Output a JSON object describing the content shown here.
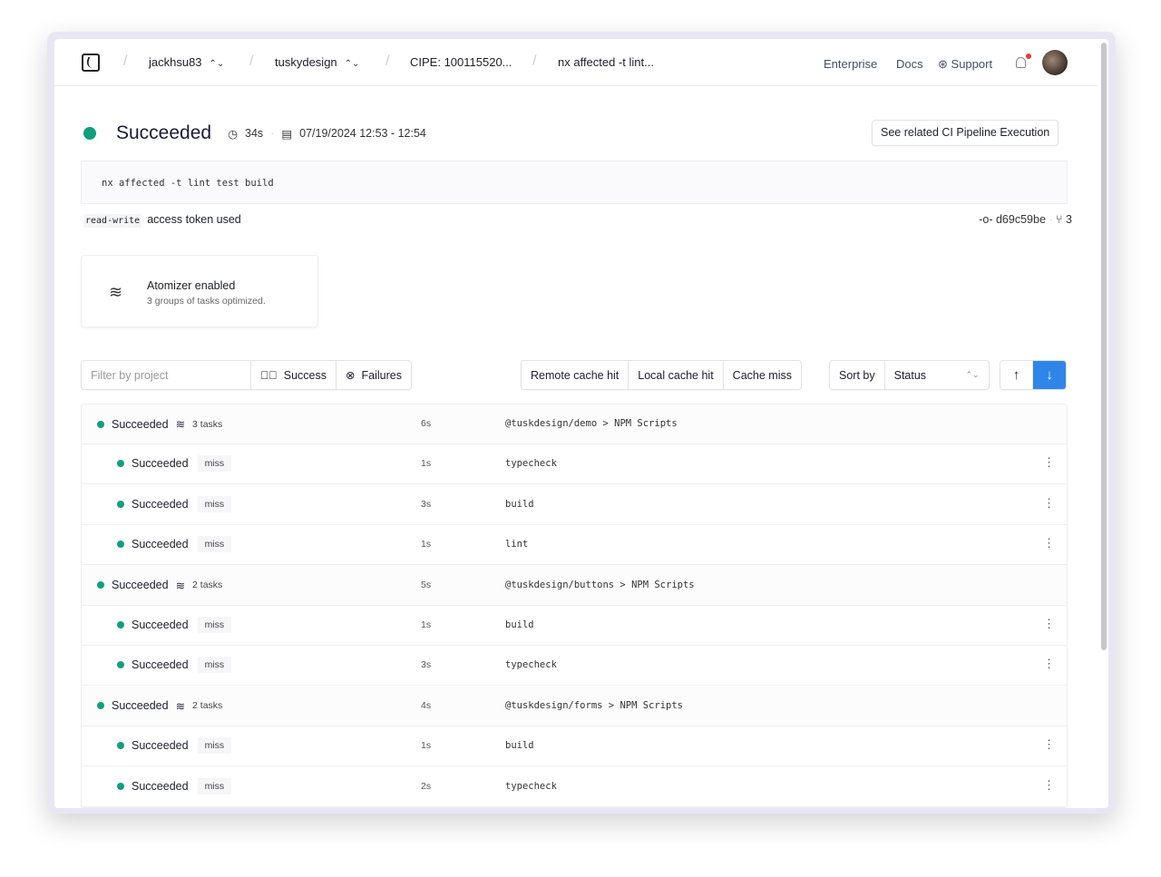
{
  "header": {
    "breadcrumbs": [
      {
        "label": "jackhsu83",
        "switcher": true
      },
      {
        "label": "tuskydesign",
        "switcher": true
      },
      {
        "label": "CIPE: 100115520...",
        "switcher": false
      },
      {
        "label": "nx affected -t lint...",
        "switcher": false
      }
    ],
    "nav": {
      "enterprise": "Enterprise",
      "docs": "Docs",
      "support": "Support"
    },
    "notification": true
  },
  "run": {
    "status": "Succeeded",
    "duration": "34s",
    "time_range": "07/19/2024 12:53 - 12:54",
    "related_button": "See related CI Pipeline Execution",
    "command": "nx affected -t lint test build",
    "token_type": "read-write",
    "token_text": "access token used",
    "commit": "d69c59be",
    "branches": "3"
  },
  "atomizer": {
    "title": "Atomizer enabled",
    "subtitle": "3 groups of tasks optimized."
  },
  "filters": {
    "placeholder": "Filter by project",
    "success": "Success",
    "failures": "Failures",
    "cache": [
      "Remote cache hit",
      "Local cache hit",
      "Cache miss"
    ],
    "sort_label": "Sort by",
    "sort_value": "Status",
    "sort_direction": "descending"
  },
  "colors": {
    "success": "#0f9f7f",
    "accent": "#2f86e8"
  },
  "rows": [
    {
      "type": "group",
      "status": "Succeeded",
      "tasks": "3 tasks",
      "duration": "6s",
      "project": "@tuskdesign/demo",
      "target": "NPM Scripts"
    },
    {
      "type": "task",
      "status": "Succeeded",
      "cache": "miss",
      "duration": "1s",
      "target": "typecheck"
    },
    {
      "type": "task",
      "status": "Succeeded",
      "cache": "miss",
      "duration": "3s",
      "target": "build"
    },
    {
      "type": "task",
      "status": "Succeeded",
      "cache": "miss",
      "duration": "1s",
      "target": "lint"
    },
    {
      "type": "group",
      "status": "Succeeded",
      "tasks": "2 tasks",
      "duration": "5s",
      "project": "@tuskdesign/buttons",
      "target": "NPM Scripts"
    },
    {
      "type": "task",
      "status": "Succeeded",
      "cache": "miss",
      "duration": "1s",
      "target": "build"
    },
    {
      "type": "task",
      "status": "Succeeded",
      "cache": "miss",
      "duration": "3s",
      "target": "typecheck"
    },
    {
      "type": "group",
      "status": "Succeeded",
      "tasks": "2 tasks",
      "duration": "4s",
      "project": "@tuskdesign/forms",
      "target": "NPM Scripts"
    },
    {
      "type": "task",
      "status": "Succeeded",
      "cache": "miss",
      "duration": "1s",
      "target": "build"
    },
    {
      "type": "task",
      "status": "Succeeded",
      "cache": "miss",
      "duration": "2s",
      "target": "typecheck"
    }
  ]
}
